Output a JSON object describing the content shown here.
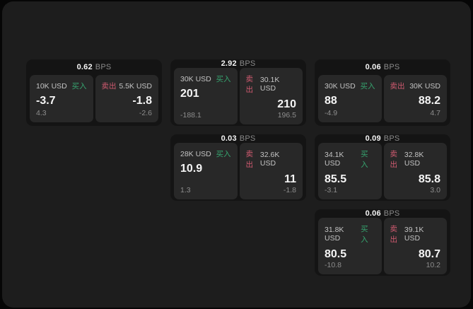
{
  "colors": {
    "page_bg": "#060606",
    "panel_bg": "#1d1d1d",
    "card_bg": "#141414",
    "tile_bg": "#282828",
    "text_primary": "#f5f5f5",
    "text_secondary": "#c3c3c3",
    "text_muted": "#8a8a8a",
    "text_muted2": "#8d8d8d",
    "buy_green": "#36a46f",
    "sell_red": "#d05a70"
  },
  "labels": {
    "bps_suffix": "BPS",
    "buy": "买入",
    "sell": "卖出"
  },
  "cards": [
    {
      "bps": "0.62",
      "buy": {
        "size": "10K USD",
        "value": "-3.7",
        "sub": "4.3"
      },
      "sell": {
        "size": "5.5K USD",
        "value": "-1.8",
        "sub": "-2.6"
      }
    },
    {
      "bps": "2.92",
      "buy": {
        "size": "30K USD",
        "value": "201",
        "sub": "-188.1"
      },
      "sell": {
        "size": "30.1K USD",
        "value": "210",
        "sub": "196.5"
      }
    },
    {
      "bps": "0.06",
      "buy": {
        "size": "30K USD",
        "value": "88",
        "sub": "-4.9"
      },
      "sell": {
        "size": "30K USD",
        "value": "88.2",
        "sub": "4.7"
      }
    },
    {
      "bps": "0.03",
      "buy": {
        "size": "28K USD",
        "value": "10.9",
        "sub": "1.3"
      },
      "sell": {
        "size": "32.6K USD",
        "value": "11",
        "sub": "-1.8"
      }
    },
    {
      "bps": "0.09",
      "buy": {
        "size": "34.1K USD",
        "value": "85.5",
        "sub": "-3.1"
      },
      "sell": {
        "size": "32.8K USD",
        "value": "85.8",
        "sub": "3.0"
      }
    },
    {
      "bps": "0.06",
      "buy": {
        "size": "31.8K USD",
        "value": "80.5",
        "sub": "-10.8"
      },
      "sell": {
        "size": "39.1K USD",
        "value": "80.7",
        "sub": "10.2"
      }
    }
  ]
}
